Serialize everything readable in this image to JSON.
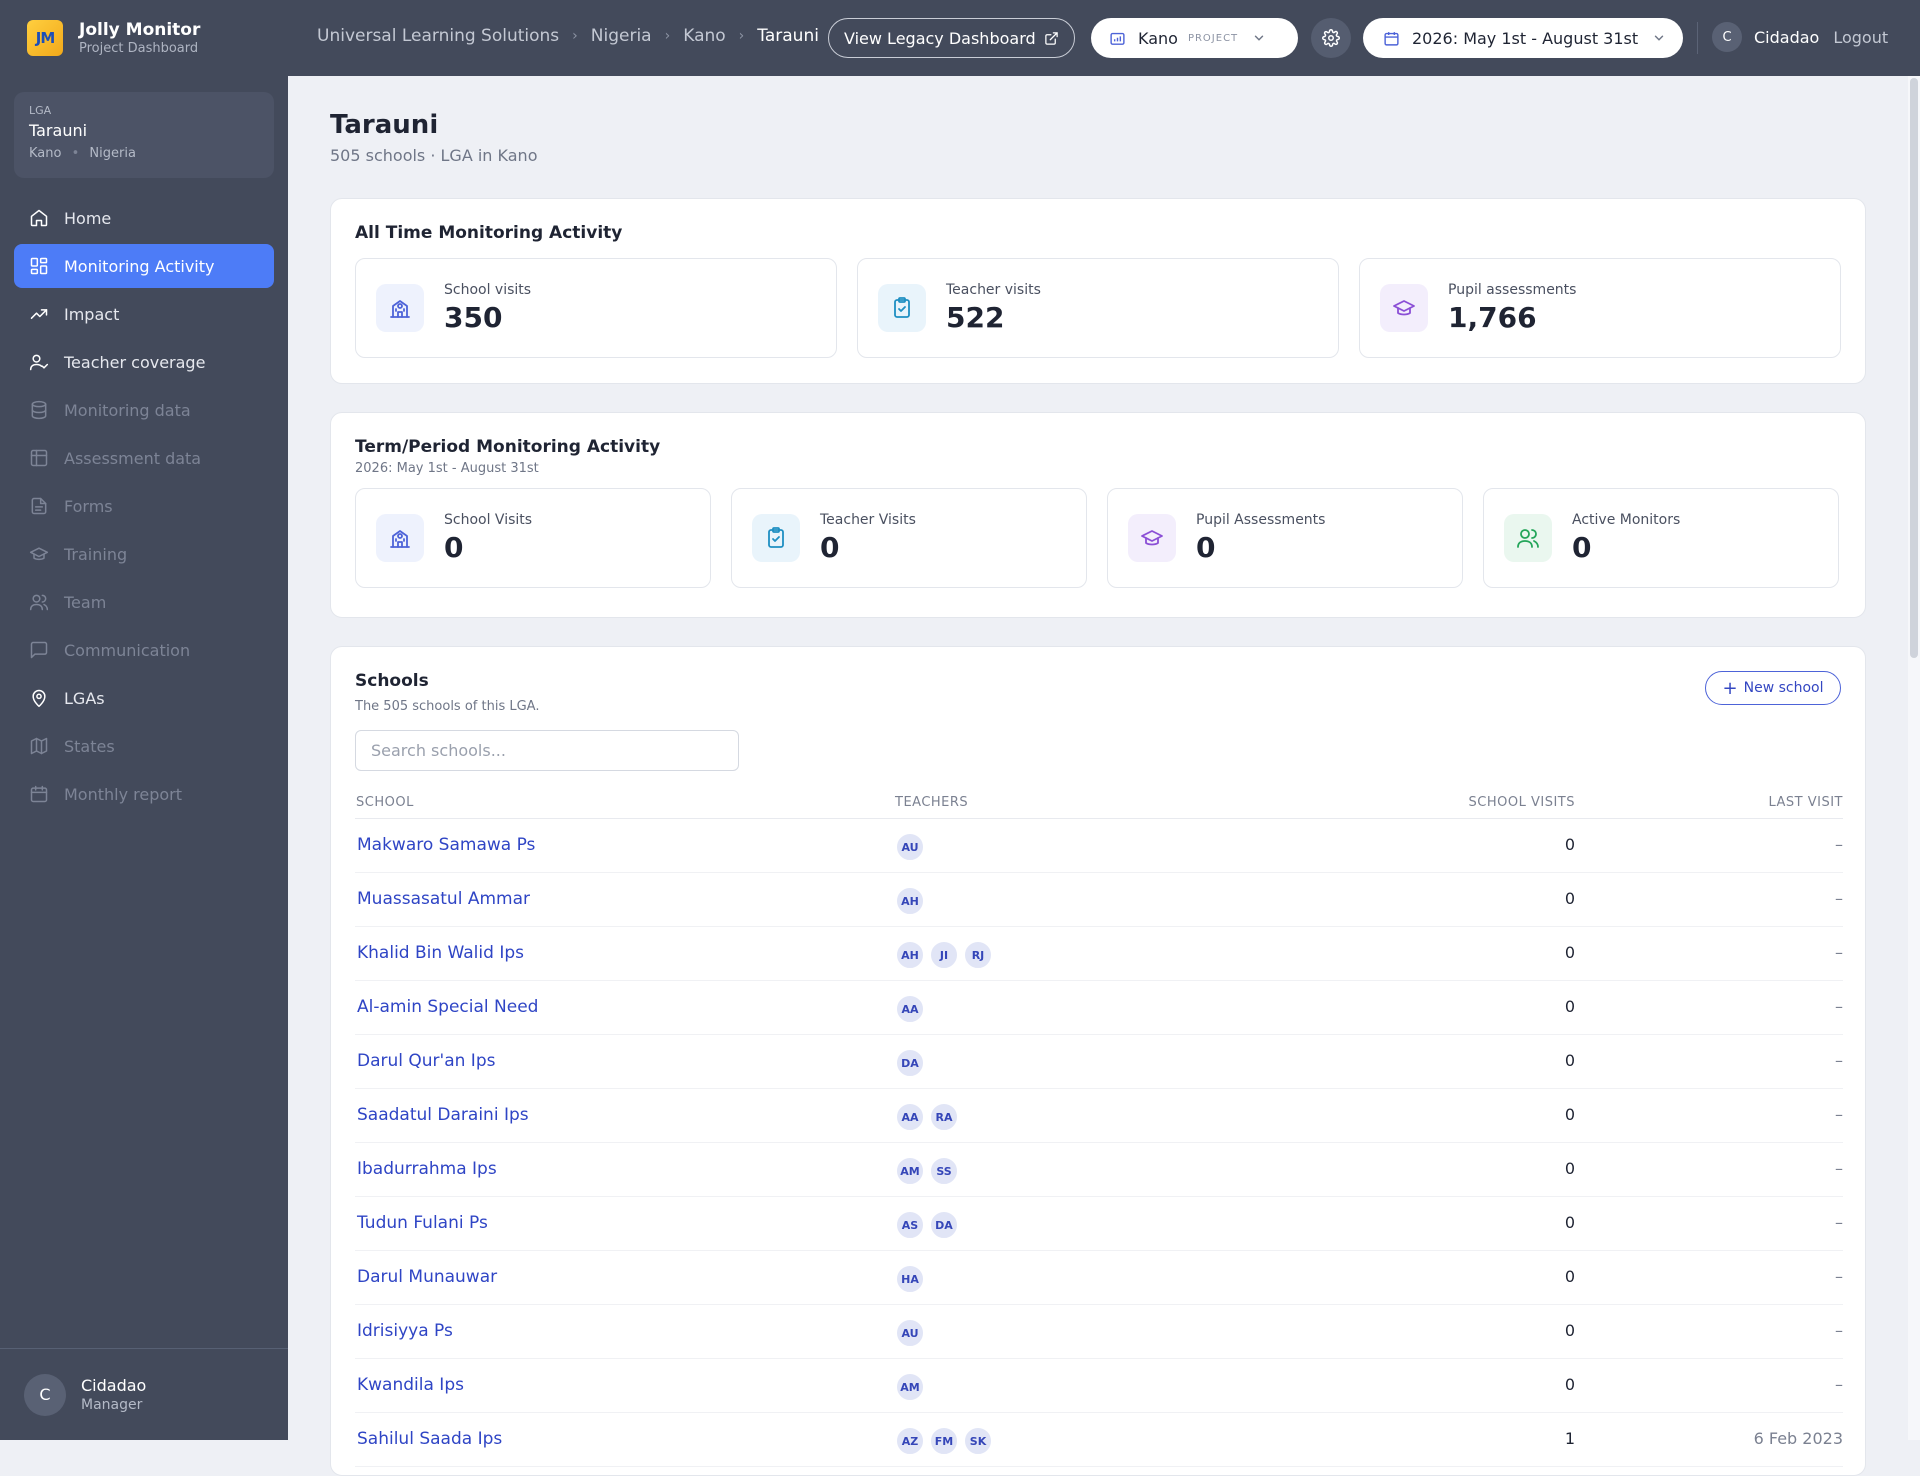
{
  "brand": {
    "logo": "JM",
    "title": "Jolly Monitor",
    "subtitle": "Project Dashboard"
  },
  "lga_card": {
    "tag": "LGA",
    "name": "Tarauni",
    "state": "Kano",
    "country": "Nigeria"
  },
  "nav": [
    {
      "label": "Home",
      "icon": "home-icon",
      "state": "normal"
    },
    {
      "label": "Monitoring Activity",
      "icon": "grid-icon",
      "state": "active"
    },
    {
      "label": "Impact",
      "icon": "trend-up-icon",
      "state": "normal"
    },
    {
      "label": "Teacher coverage",
      "icon": "user-check-icon",
      "state": "normal"
    },
    {
      "label": "Monitoring data",
      "icon": "database-icon",
      "state": "disabled"
    },
    {
      "label": "Assessment data",
      "icon": "table-icon",
      "state": "disabled"
    },
    {
      "label": "Forms",
      "icon": "document-icon",
      "state": "disabled"
    },
    {
      "label": "Training",
      "icon": "graduation-cap-icon",
      "state": "disabled"
    },
    {
      "label": "Team",
      "icon": "users-icon",
      "state": "disabled"
    },
    {
      "label": "Communication",
      "icon": "chat-icon",
      "state": "disabled"
    },
    {
      "label": "LGAs",
      "icon": "map-pin-icon",
      "state": "normal"
    },
    {
      "label": "States",
      "icon": "map-icon",
      "state": "disabled"
    },
    {
      "label": "Monthly report",
      "icon": "calendar-icon",
      "state": "disabled"
    }
  ],
  "sidebar_user": {
    "initial": "C",
    "name": "Cidadao",
    "role": "Manager"
  },
  "breadcrumbs": [
    "Universal Learning Solutions",
    "Nigeria",
    "Kano",
    "Tarauni"
  ],
  "topbar": {
    "legacy_button": "View Legacy Dashboard",
    "project": {
      "name": "Kano",
      "tag": "PROJECT"
    },
    "date_range": "2026: May 1st - August 31st",
    "user_initial": "C",
    "user_name": "Cidadao",
    "logout": "Logout"
  },
  "page": {
    "title": "Tarauni",
    "subtitle": "505 schools · LGA in Kano"
  },
  "all_time": {
    "title": "All Time Monitoring Activity",
    "stats": [
      {
        "label": "School visits",
        "value": "350",
        "icon": "school-icon",
        "tone": "blue"
      },
      {
        "label": "Teacher visits",
        "value": "522",
        "icon": "clipboard-check-icon",
        "tone": "teal"
      },
      {
        "label": "Pupil assessments",
        "value": "1,766",
        "icon": "graduation-cap-icon",
        "tone": "purple"
      }
    ]
  },
  "term": {
    "title": "Term/Period Monitoring Activity",
    "subtitle": "2026: May 1st - August 31st",
    "stats": [
      {
        "label": "School Visits",
        "value": "0",
        "icon": "school-icon",
        "tone": "blue"
      },
      {
        "label": "Teacher Visits",
        "value": "0",
        "icon": "clipboard-check-icon",
        "tone": "teal"
      },
      {
        "label": "Pupil Assessments",
        "value": "0",
        "icon": "graduation-cap-icon",
        "tone": "purple"
      },
      {
        "label": "Active Monitors",
        "value": "0",
        "icon": "users-icon",
        "tone": "green"
      }
    ]
  },
  "schools": {
    "title": "Schools",
    "subtitle": "The 505 schools of this LGA.",
    "new_button": "New school",
    "search_placeholder": "Search schools...",
    "columns": {
      "school": "SCHOOL",
      "teachers": "TEACHERS",
      "visits": "SCHOOL VISITS",
      "last": "LAST VISIT"
    },
    "rows": [
      {
        "name": "Makwaro Samawa Ps",
        "teachers": [
          "AU"
        ],
        "visits": "0",
        "last": "–"
      },
      {
        "name": "Muassasatul Ammar",
        "teachers": [
          "AH"
        ],
        "visits": "0",
        "last": "–"
      },
      {
        "name": "Khalid Bin Walid Ips",
        "teachers": [
          "AH",
          "JI",
          "RJ"
        ],
        "visits": "0",
        "last": "–"
      },
      {
        "name": "Al-amin Special Need",
        "teachers": [
          "AA"
        ],
        "visits": "0",
        "last": "–"
      },
      {
        "name": "Darul Qur'an Ips",
        "teachers": [
          "DA"
        ],
        "visits": "0",
        "last": "–"
      },
      {
        "name": "Saadatul Daraini Ips",
        "teachers": [
          "AA",
          "RA"
        ],
        "visits": "0",
        "last": "–"
      },
      {
        "name": "Ibadurrahma Ips",
        "teachers": [
          "AM",
          "SS"
        ],
        "visits": "0",
        "last": "–"
      },
      {
        "name": "Tudun Fulani Ps",
        "teachers": [
          "AS",
          "DA"
        ],
        "visits": "0",
        "last": "–"
      },
      {
        "name": "Darul Munauwar",
        "teachers": [
          "HA"
        ],
        "visits": "0",
        "last": "–"
      },
      {
        "name": "Idrisiyya Ps",
        "teachers": [
          "AU"
        ],
        "visits": "0",
        "last": "–"
      },
      {
        "name": "Kwandila Ips",
        "teachers": [
          "AM"
        ],
        "visits": "0",
        "last": "–"
      },
      {
        "name": "Sahilul Saada Ips",
        "teachers": [
          "AZ",
          "FM",
          "SK"
        ],
        "visits": "1",
        "last": "6 Feb 2023"
      }
    ]
  }
}
